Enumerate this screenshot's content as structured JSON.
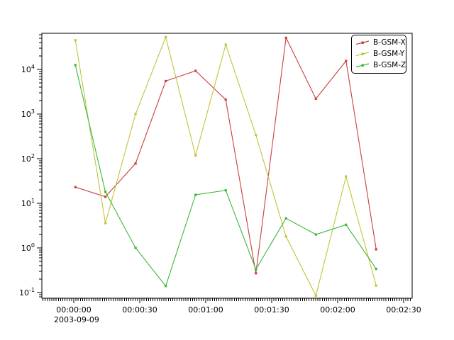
{
  "chart_data": {
    "type": "line",
    "title": "",
    "x_axis": {
      "unit": "time of day on 2003-09-09",
      "date_label": "2003-09-09",
      "major_tick_interval_seconds": 30,
      "minor_tick_interval_seconds": 1,
      "range_seconds": [
        -14.5,
        154
      ],
      "ticks": [
        {
          "seconds": 0,
          "label": "00:00:00"
        },
        {
          "seconds": 30,
          "label": "00:00:30"
        },
        {
          "seconds": 60,
          "label": "00:01:00"
        },
        {
          "seconds": 90,
          "label": "00:01:30"
        },
        {
          "seconds": 120,
          "label": "00:02:00"
        },
        {
          "seconds": 150,
          "label": "00:02:30"
        }
      ]
    },
    "y_axis": {
      "scale": "log",
      "range": [
        0.075,
        64000
      ],
      "ticks": [
        {
          "value": 0.1,
          "base": "10",
          "exp": "-1"
        },
        {
          "value": 1,
          "base": "10",
          "exp": "0"
        },
        {
          "value": 10,
          "base": "10",
          "exp": "1"
        },
        {
          "value": 100,
          "base": "10",
          "exp": "2"
        },
        {
          "value": 1000,
          "base": "10",
          "exp": "3"
        },
        {
          "value": 10000,
          "base": "10",
          "exp": "4"
        }
      ]
    },
    "x_seconds": [
      0.7,
      14.4,
      28.1,
      41.8,
      55.4,
      69.1,
      82.8,
      96.5,
      110.1,
      123.8,
      137.5
    ],
    "series": [
      {
        "name": "B-GSM-X",
        "color": "#cc3d3d",
        "values": [
          23,
          14,
          78,
          5500,
          9300,
          2100,
          0.27,
          51000,
          2200,
          15500,
          0.93
        ]
      },
      {
        "name": "B-GSM-Y",
        "color": "#c3c33c",
        "values": [
          45000,
          3.6,
          1000,
          53000,
          118,
          36000,
          340,
          1.8,
          0.085,
          40,
          0.143
        ]
      },
      {
        "name": "B-GSM-Z",
        "color": "#3bb83b",
        "values": [
          12500,
          18,
          1.0,
          0.14,
          15.5,
          19.5,
          0.33,
          4.6,
          2.0,
          3.3,
          0.34
        ]
      }
    ],
    "legend": {
      "position": "upper-right",
      "labels": [
        "B-GSM-X",
        "B-GSM-Y",
        "B-GSM-Z"
      ]
    },
    "grid": false
  }
}
